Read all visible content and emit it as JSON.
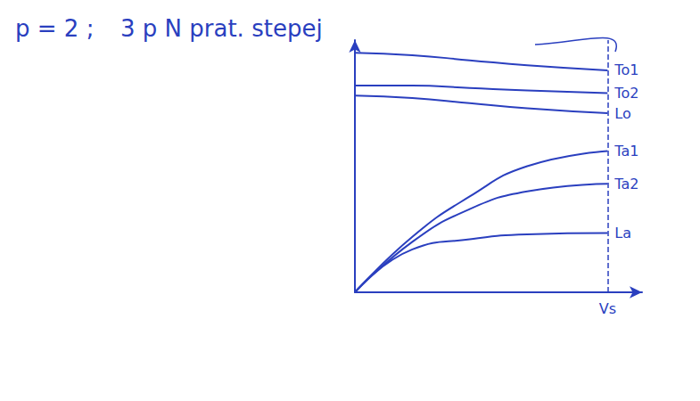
{
  "chart_data": {
    "type": "line",
    "title": "p = 2 ;",
    "subtitle": "3 p N prat. stepej",
    "x": [
      0,
      20,
      40,
      60,
      88
    ],
    "series": [
      {
        "name": "To1",
        "color": "#2a3fbf",
        "values": [
          95,
          94,
          92,
          90,
          88
        ]
      },
      {
        "name": "To2",
        "color": "#2a3fbf",
        "values": [
          82,
          82,
          81,
          80,
          79
        ]
      },
      {
        "name": "Lo",
        "color": "#2a3fbf",
        "values": [
          78,
          77,
          75,
          73,
          71
        ]
      },
      {
        "name": "Ta1",
        "color": "#2a3fbf",
        "values": [
          0,
          22,
          38,
          50,
          56
        ]
      },
      {
        "name": "Ta2",
        "color": "#2a3fbf",
        "values": [
          0,
          20,
          33,
          40,
          43
        ]
      },
      {
        "name": "La",
        "color": "#2a3fbf",
        "values": [
          0,
          17,
          21,
          23,
          23.5
        ]
      }
    ],
    "xlim": [
      0,
      100
    ],
    "xticks": [
      {
        "value": 88,
        "label": "Vs"
      }
    ],
    "ylim": [
      0,
      100
    ],
    "tick_labels": "x",
    "grid": false
  }
}
